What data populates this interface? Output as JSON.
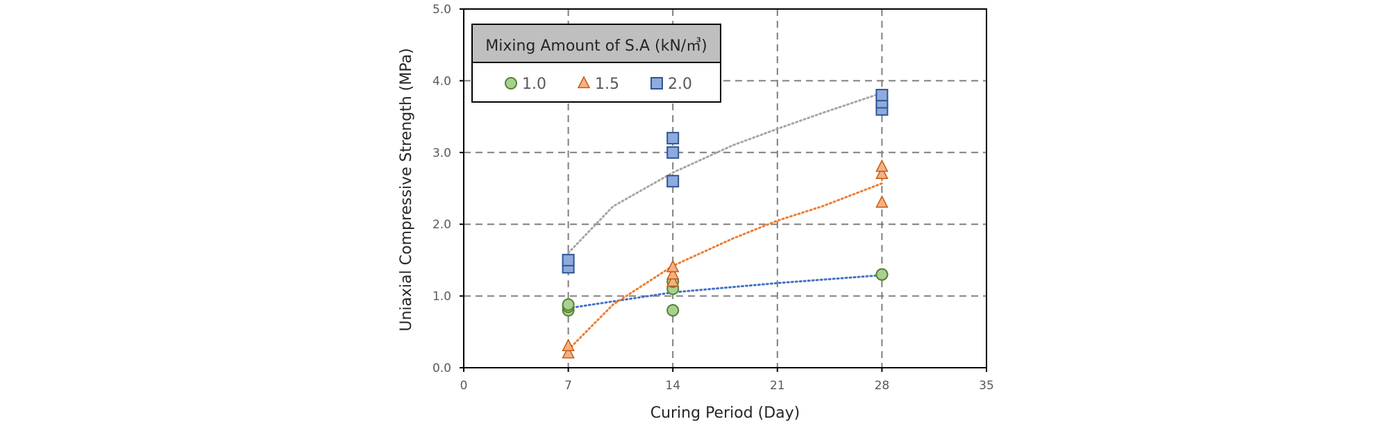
{
  "chart_data": {
    "type": "scatter",
    "xlabel": "Curing Period (Day)",
    "ylabel": "Uniaxial Compressive Strength (MPa)",
    "xlim": [
      0,
      35
    ],
    "ylim": [
      0,
      5
    ],
    "xticks": [
      0,
      7,
      14,
      21,
      28,
      35
    ],
    "yticks": [
      0,
      1,
      2,
      3,
      4,
      5
    ],
    "xtick_labels": [
      "0",
      "7",
      "14",
      "21",
      "28",
      "35"
    ],
    "ytick_labels": [
      "0.0",
      "1.0",
      "2.0",
      "3.0",
      "4.0",
      "5.0"
    ],
    "grid": true,
    "legend": {
      "title": "Mixing Amount of S.A (kN/㎥)",
      "placement": "top-left"
    },
    "series": [
      {
        "name": "1.0",
        "marker": "circle",
        "fill": "#a9d18e",
        "stroke": "#548235",
        "points": [
          [
            7,
            0.8
          ],
          [
            7,
            0.85
          ],
          [
            7,
            0.88
          ],
          [
            14,
            1.1
          ],
          [
            14,
            1.2
          ],
          [
            14,
            0.8
          ],
          [
            28,
            1.3
          ],
          [
            28,
            1.3
          ]
        ],
        "trend": {
          "color": "#4472c4",
          "x": [
            7,
            14,
            21,
            28
          ],
          "y": [
            0.83,
            1.05,
            1.18,
            1.29
          ]
        }
      },
      {
        "name": "1.5",
        "marker": "triangle",
        "fill": "#f4b183",
        "stroke": "#c55a11",
        "points": [
          [
            7,
            0.2
          ],
          [
            7,
            0.3
          ],
          [
            14,
            1.2
          ],
          [
            14,
            1.3
          ],
          [
            14,
            1.4
          ],
          [
            28,
            2.3
          ],
          [
            28,
            2.7
          ],
          [
            28,
            2.8
          ]
        ],
        "trend": {
          "color": "#ed7d31",
          "x": [
            7,
            10,
            14,
            18,
            21,
            24,
            28
          ],
          "y": [
            0.25,
            0.88,
            1.42,
            1.8,
            2.05,
            2.25,
            2.57
          ]
        }
      },
      {
        "name": "2.0",
        "marker": "square",
        "fill": "#8faadc",
        "stroke": "#2f5597",
        "points": [
          [
            7,
            1.4
          ],
          [
            7,
            1.5
          ],
          [
            14,
            2.6
          ],
          [
            14,
            3.0
          ],
          [
            14,
            3.2
          ],
          [
            28,
            3.6
          ],
          [
            28,
            3.7
          ],
          [
            28,
            3.8
          ]
        ],
        "trend": {
          "color": "#a5a5a5",
          "x": [
            7,
            10,
            14,
            18,
            21,
            24,
            28
          ],
          "y": [
            1.6,
            2.25,
            2.72,
            3.1,
            3.33,
            3.55,
            3.83
          ]
        }
      }
    ]
  }
}
